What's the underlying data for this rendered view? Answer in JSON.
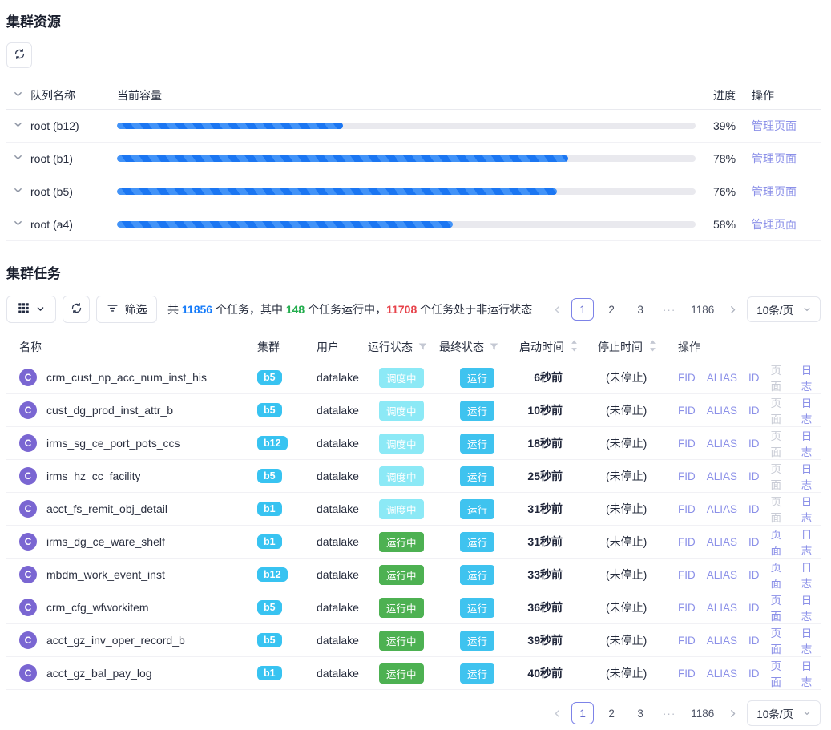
{
  "colors": {
    "progress_blue": "#1b76f2",
    "link_purple": "#8b90e8",
    "cluster_badge": "#38c3f1",
    "scheduling_badge": "#8ce9f6",
    "running_badge": "#4db152",
    "final_badge": "#3fc3ef",
    "avatar_purple": "#7a66d2",
    "count_blue": "#157bf9",
    "count_green": "#22ad4d",
    "count_red": "#e7434b"
  },
  "icons": {
    "refresh": "sync-circular-arrows",
    "grid": "grid-3x3",
    "chevron": "chevron-down",
    "filter_lines": "filter-lines",
    "funnel": "filter-funnel",
    "sorter": "caret-up-down",
    "prev": "chevron-left",
    "next": "chevron-right"
  },
  "resources": {
    "title": "集群资源",
    "header": {
      "queue": "队列名称",
      "capacity": "当前容量",
      "progress": "进度",
      "action": "操作"
    },
    "action_label": "管理页面",
    "rows": [
      {
        "queue": "root (b12)",
        "percent": "39%",
        "value": 39
      },
      {
        "queue": "root (b1)",
        "percent": "78%",
        "value": 78
      },
      {
        "queue": "root (b5)",
        "percent": "76%",
        "value": 76
      },
      {
        "queue": "root (a4)",
        "percent": "58%",
        "value": 58
      }
    ]
  },
  "tasks": {
    "title": "集群任务",
    "toolbar": {
      "filter_label": "筛选",
      "summary": {
        "part1": "共 ",
        "total": "11856",
        "part2": " 个任务，其中 ",
        "running": "148",
        "part3": " 个任务运行中，",
        "not_running": "11708",
        "part4": " 个任务处于非运行状态"
      }
    },
    "header": {
      "name": "名称",
      "cluster": "集群",
      "user": "用户",
      "run_status": "运行状态",
      "final_status": "最终状态",
      "start_time": "启动时间",
      "stop_time": "停止时间",
      "action": "操作"
    },
    "avatar_letter": "C",
    "op_labels": {
      "fid": "FID",
      "alias": "ALIAS",
      "id": "ID",
      "page": "页面",
      "log": "日志"
    },
    "rows": [
      {
        "name": "crm_cust_np_acc_num_inst_his",
        "cluster": "b5",
        "user": "datalake",
        "run_status": "调度中",
        "run_key": "scheduling",
        "final_status": "运行",
        "start": "6秒前",
        "stop": "(未停止)",
        "page_state": "disabled"
      },
      {
        "name": "cust_dg_prod_inst_attr_b",
        "cluster": "b5",
        "user": "datalake",
        "run_status": "调度中",
        "run_key": "scheduling",
        "final_status": "运行",
        "start": "10秒前",
        "stop": "(未停止)",
        "page_state": "disabled"
      },
      {
        "name": "irms_sg_ce_port_pots_ccs",
        "cluster": "b12",
        "user": "datalake",
        "run_status": "调度中",
        "run_key": "scheduling",
        "final_status": "运行",
        "start": "18秒前",
        "stop": "(未停止)",
        "page_state": "disabled"
      },
      {
        "name": "irms_hz_cc_facility",
        "cluster": "b5",
        "user": "datalake",
        "run_status": "调度中",
        "run_key": "scheduling",
        "final_status": "运行",
        "start": "25秒前",
        "stop": "(未停止)",
        "page_state": "disabled"
      },
      {
        "name": "acct_fs_remit_obj_detail",
        "cluster": "b1",
        "user": "datalake",
        "run_status": "调度中",
        "run_key": "scheduling",
        "final_status": "运行",
        "start": "31秒前",
        "stop": "(未停止)",
        "page_state": "disabled"
      },
      {
        "name": "irms_dg_ce_ware_shelf",
        "cluster": "b1",
        "user": "datalake",
        "run_status": "运行中",
        "run_key": "running",
        "final_status": "运行",
        "start": "31秒前",
        "stop": "(未停止)",
        "page_state": "enabled"
      },
      {
        "name": "mbdm_work_event_inst",
        "cluster": "b12",
        "user": "datalake",
        "run_status": "运行中",
        "run_key": "running",
        "final_status": "运行",
        "start": "33秒前",
        "stop": "(未停止)",
        "page_state": "enabled"
      },
      {
        "name": "crm_cfg_wfworkitem",
        "cluster": "b5",
        "user": "datalake",
        "run_status": "运行中",
        "run_key": "running",
        "final_status": "运行",
        "start": "36秒前",
        "stop": "(未停止)",
        "page_state": "enabled"
      },
      {
        "name": "acct_gz_inv_oper_record_b",
        "cluster": "b5",
        "user": "datalake",
        "run_status": "运行中",
        "run_key": "running",
        "final_status": "运行",
        "start": "39秒前",
        "stop": "(未停止)",
        "page_state": "enabled"
      },
      {
        "name": "acct_gz_bal_pay_log",
        "cluster": "b1",
        "user": "datalake",
        "run_status": "运行中",
        "run_key": "running",
        "final_status": "运行",
        "start": "40秒前",
        "stop": "(未停止)",
        "page_state": "enabled"
      }
    ]
  },
  "pagination": {
    "items": [
      {
        "label": "1",
        "state": "active"
      },
      {
        "label": "2",
        "state": "normal"
      },
      {
        "label": "3",
        "state": "normal"
      },
      {
        "label": "···",
        "state": "ellipsis"
      },
      {
        "label": "1186",
        "state": "normal"
      }
    ],
    "page_size": "10条/页"
  }
}
